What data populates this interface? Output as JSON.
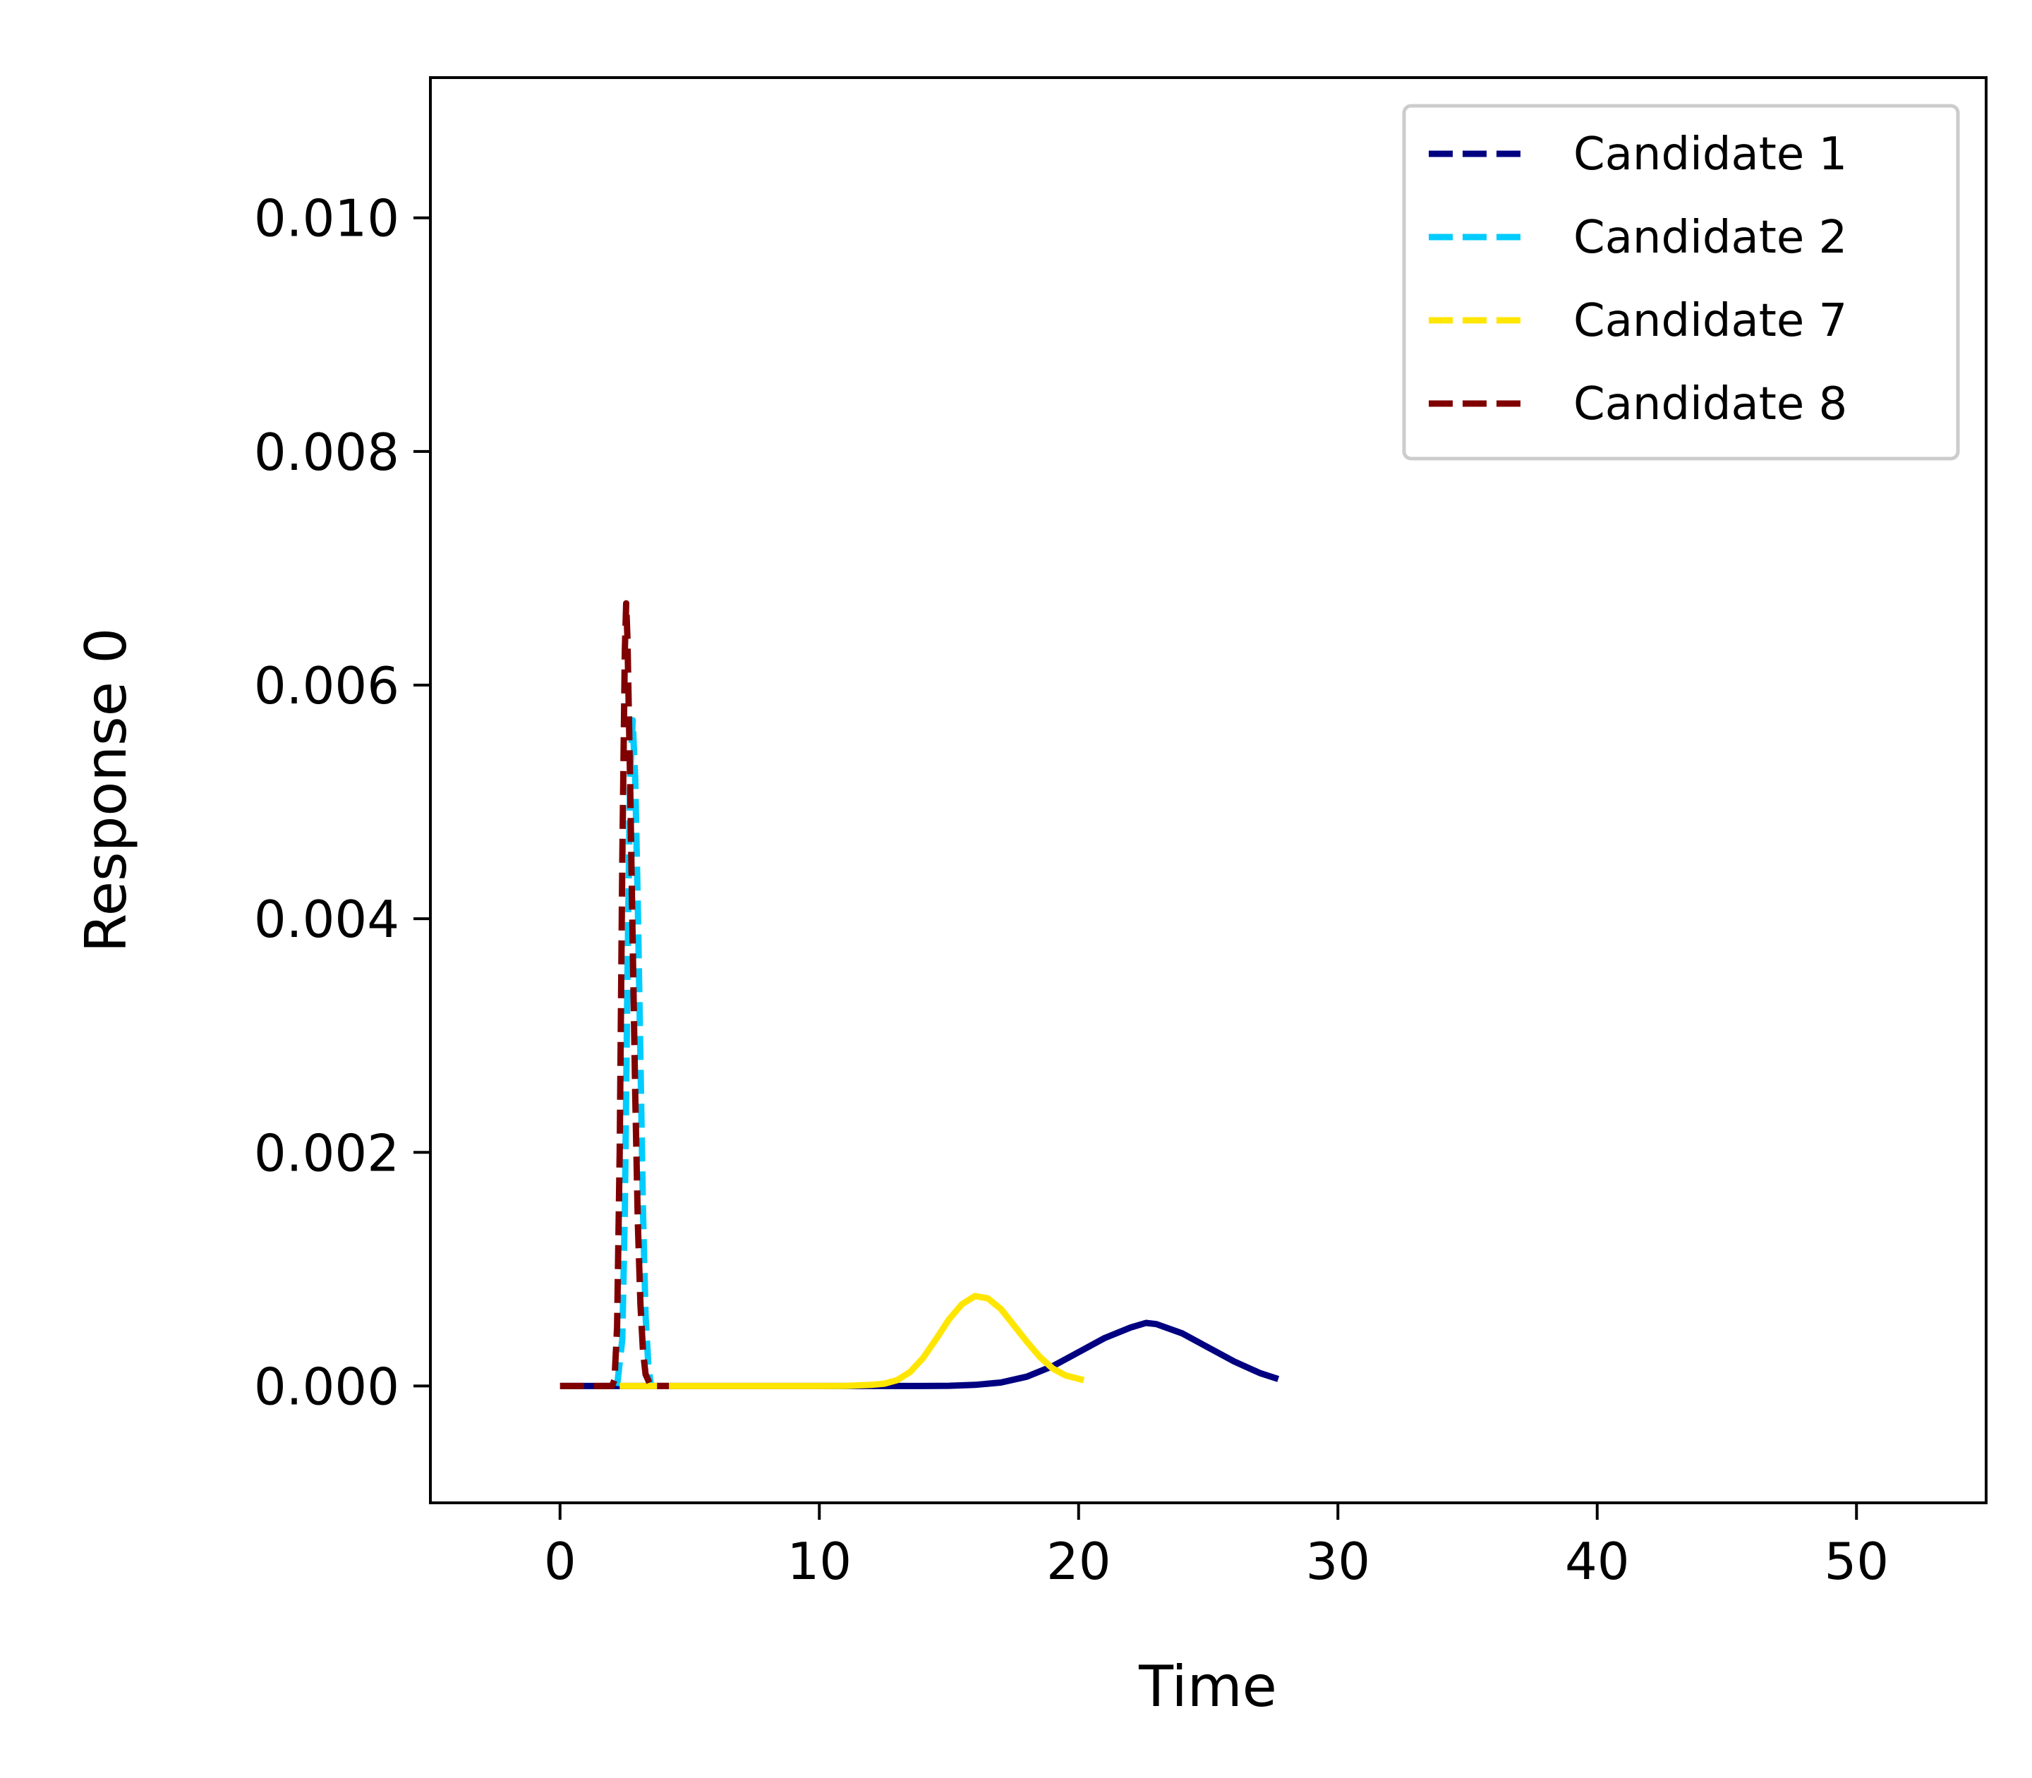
{
  "chart_data": {
    "type": "line",
    "title": "",
    "xlabel": "Time",
    "ylabel": "Response 0",
    "xlim": [
      -5,
      55
    ],
    "ylim": [
      -0.001,
      0.0112
    ],
    "xticks": [
      0,
      10,
      20,
      30,
      40,
      50
    ],
    "xtick_labels": [
      "0",
      "10",
      "20",
      "30",
      "40",
      "50"
    ],
    "yticks": [
      0.0,
      0.002,
      0.004,
      0.006,
      0.008,
      0.01
    ],
    "ytick_labels": [
      "0.000",
      "0.002",
      "0.004",
      "0.006",
      "0.008",
      "0.010"
    ],
    "grid": false,
    "legend_position": "top-right",
    "series": [
      {
        "name": "Candidate 1",
        "color": "#000080",
        "style": "solid",
        "legend_style": "dashed",
        "x": [
          0,
          2,
          4,
          6,
          8,
          10,
          12,
          14,
          15,
          16,
          17,
          18,
          19,
          20,
          21,
          22,
          22.6,
          23,
          24,
          25,
          26,
          27,
          27.7
        ],
        "y": [
          0,
          0,
          0,
          0,
          0,
          0,
          0,
          0,
          2e-06,
          1e-05,
          3e-05,
          8e-05,
          0.00017,
          0.00029,
          0.00041,
          0.0005,
          0.00054,
          0.00053,
          0.00045,
          0.00033,
          0.00021,
          0.00011,
          6e-05
        ]
      },
      {
        "name": "Candidate 2",
        "color": "#00CCFF",
        "style": "dashed",
        "legend_style": "dashed",
        "x": [
          2.2,
          2.4,
          2.5,
          2.6,
          2.7,
          2.8,
          2.9,
          3.0,
          3.1,
          3.2,
          3.3,
          3.4,
          3.5
        ],
        "y": [
          0,
          0.0004,
          0.0015,
          0.0035,
          0.0052,
          0.0057,
          0.0052,
          0.0041,
          0.0028,
          0.0015,
          0.0006,
          0.0002,
          0
        ]
      },
      {
        "name": "Candidate 7",
        "color": "#FFE600",
        "style": "solid",
        "legend_style": "dashed",
        "x": [
          2.3,
          4,
          6,
          8,
          10,
          11,
          12,
          12.5,
          13,
          13.5,
          14,
          14.5,
          15,
          15.5,
          16,
          16.5,
          17,
          17.5,
          18,
          18.5,
          19,
          19.5,
          20.2
        ],
        "y": [
          0,
          0,
          0,
          0,
          0,
          1e-06,
          1e-05,
          2e-05,
          5e-05,
          0.00012,
          0.00024,
          0.0004,
          0.00057,
          0.0007,
          0.00077,
          0.00075,
          0.00066,
          0.00052,
          0.00038,
          0.00025,
          0.00015,
          9e-05,
          5e-05
        ]
      },
      {
        "name": "Candidate 8",
        "color": "#800000",
        "style": "dashed",
        "legend_style": "dashed",
        "x": [
          0,
          1,
          2,
          2.1,
          2.2,
          2.3,
          2.4,
          2.5,
          2.55,
          2.6,
          2.7,
          2.8,
          2.9,
          3.0,
          3.1,
          3.2,
          3.3,
          3.5,
          4.2
        ],
        "y": [
          0,
          0,
          0,
          5e-05,
          0.0005,
          0.002,
          0.0045,
          0.0063,
          0.0067,
          0.0064,
          0.0052,
          0.0038,
          0.0025,
          0.0014,
          0.0007,
          0.0003,
          0.0001,
          0,
          0
        ]
      }
    ]
  }
}
